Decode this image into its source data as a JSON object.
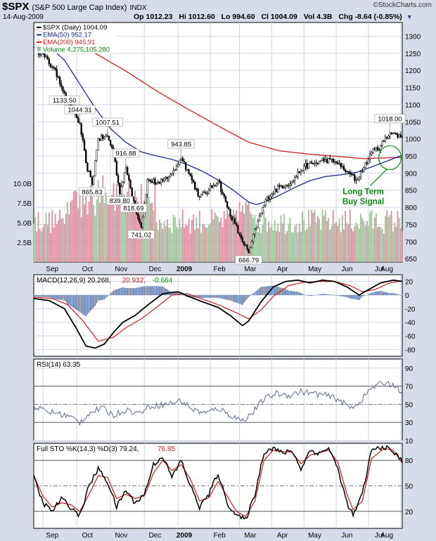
{
  "header": {
    "symbol": "$SPX",
    "name": "(S&P 500 Large Cap Index)",
    "exchange": "INDX",
    "date": "14-Aug-2009",
    "open": "Op 1012.23",
    "high": "Hi 1012.60",
    "low": "Lo 994.60",
    "close": "Cl 1004.09",
    "volume": "Vol 4.3B",
    "change": "Chg -8.64 (-0.85%)",
    "watermark": "©StockCharts.com"
  },
  "colors": {
    "background": "#d7dde8",
    "panel": "#ffffff",
    "price": "#000000",
    "ema50": "#1a2a8a",
    "ema200": "#cc1f1f",
    "volume_up": "#9cc29a",
    "volume_down": "#d98fa0",
    "annotation": "#0a8a0a",
    "rsi": "#5a6a90",
    "grid": "#cfd6e4"
  },
  "chart_data": [
    {
      "type": "line",
      "panel": "price",
      "title": "$SPX (Daily) 1004.09",
      "legend": [
        {
          "label": "$SPX (Daily) 1004.09",
          "color": "#000000"
        },
        {
          "label": "EMA(50) 952.17",
          "color": "#1a2a8a"
        },
        {
          "label": "EMA(200) 945.91",
          "color": "#cc1f1f"
        },
        {
          "label": "Volume 4,275,105,280",
          "color": "#0a8a0a"
        }
      ],
      "legend_position": "top-left",
      "ylim": [
        640,
        1340
      ],
      "yticks": [
        650,
        700,
        750,
        800,
        850,
        900,
        950,
        1000,
        1050,
        1100,
        1150,
        1200,
        1250,
        1300
      ],
      "volume_ticks": [
        "2.5B",
        "5.0B",
        "7.5B",
        "10.0B"
      ],
      "x_month_labels": [
        "Sep",
        "Oct",
        "Nov",
        "Dec",
        "2009",
        "Feb",
        "Mar",
        "Apr",
        "May",
        "Jun",
        "Jul",
        "Aug"
      ],
      "x_range": [
        0,
        240
      ],
      "close_keypoints": [
        [
          0,
          1268
        ],
        [
          5,
          1250
        ],
        [
          12,
          1210
        ],
        [
          16,
          1180
        ],
        [
          20,
          1133.5
        ],
        [
          24,
          1095
        ],
        [
          30,
          1044.31
        ],
        [
          34,
          930
        ],
        [
          38,
          865.83
        ],
        [
          42,
          1000
        ],
        [
          48,
          1007.51
        ],
        [
          52,
          960
        ],
        [
          56,
          839.8
        ],
        [
          60,
          916.88
        ],
        [
          65,
          818.69
        ],
        [
          70,
          741.02
        ],
        [
          74,
          880
        ],
        [
          82,
          870
        ],
        [
          90,
          900
        ],
        [
          96,
          943.85
        ],
        [
          100,
          910
        ],
        [
          108,
          830
        ],
        [
          114,
          850
        ],
        [
          120,
          880
        ],
        [
          126,
          800
        ],
        [
          134,
          720
        ],
        [
          140,
          666.79
        ],
        [
          146,
          760
        ],
        [
          152,
          830
        ],
        [
          160,
          860
        ],
        [
          168,
          875
        ],
        [
          176,
          920
        ],
        [
          184,
          930
        ],
        [
          190,
          940
        ],
        [
          197,
          930
        ],
        [
          204,
          905
        ],
        [
          210,
          880
        ],
        [
          214,
          905
        ],
        [
          220,
          960
        ],
        [
          226,
          980
        ],
        [
          232,
          1018
        ],
        [
          236,
          1012.6
        ],
        [
          240,
          1004.09
        ]
      ],
      "ema50_keypoints": [
        [
          0,
          1300
        ],
        [
          10,
          1270
        ],
        [
          20,
          1230
        ],
        [
          30,
          1160
        ],
        [
          40,
          1090
        ],
        [
          50,
          1030
        ],
        [
          60,
          990
        ],
        [
          70,
          962
        ],
        [
          80,
          950
        ],
        [
          90,
          940
        ],
        [
          100,
          925
        ],
        [
          110,
          905
        ],
        [
          120,
          880
        ],
        [
          130,
          850
        ],
        [
          140,
          815
        ],
        [
          145,
          808
        ],
        [
          150,
          815
        ],
        [
          160,
          835
        ],
        [
          170,
          858
        ],
        [
          180,
          878
        ],
        [
          190,
          890
        ],
        [
          200,
          895
        ],
        [
          210,
          902
        ],
        [
          220,
          918
        ],
        [
          230,
          935
        ],
        [
          240,
          952.17
        ]
      ],
      "ema200_keypoints": [
        [
          0,
          1320
        ],
        [
          20,
          1295
        ],
        [
          40,
          1250
        ],
        [
          60,
          1198
        ],
        [
          80,
          1140
        ],
        [
          100,
          1088
        ],
        [
          120,
          1038
        ],
        [
          140,
          990
        ],
        [
          160,
          965
        ],
        [
          180,
          955
        ],
        [
          200,
          948
        ],
        [
          215,
          942
        ],
        [
          225,
          944
        ],
        [
          240,
          945.91
        ]
      ],
      "price_labels": [
        {
          "x": 20,
          "value": 1133.5,
          "text": "1133.50"
        },
        {
          "x": 30,
          "value": 1044.31,
          "text": "1044.31"
        },
        {
          "x": 38,
          "value": 865.83,
          "text": "865.83"
        },
        {
          "x": 48,
          "value": 1007.51,
          "text": "1007.51"
        },
        {
          "x": 56,
          "value": 839.8,
          "text": "839.80"
        },
        {
          "x": 60,
          "value": 916.88,
          "text": "916.88"
        },
        {
          "x": 65,
          "value": 818.69,
          "text": "818.69"
        },
        {
          "x": 70,
          "value": 741.02,
          "text": "741.02"
        },
        {
          "x": 96,
          "value": 943.85,
          "text": "943.85"
        },
        {
          "x": 140,
          "value": 666.79,
          "text": "666.79"
        },
        {
          "x": 232,
          "value": 1018.0,
          "text": "1018.00"
        }
      ],
      "annotation": {
        "line1": "Long Term",
        "line2": "Buy Signal",
        "x": 232,
        "value": 945
      }
    },
    {
      "type": "line",
      "panel": "macd",
      "title": "MACD(12,26,9) 20.268, 20.932, -0.664",
      "legend": [
        {
          "label": "MACD(12,26,9) 20.268,",
          "color": "#000000"
        },
        {
          "label": "20.932,",
          "color": "#cc1f1f"
        },
        {
          "label": "-0.664",
          "color": "#0a8a0a"
        }
      ],
      "ylim": [
        -90,
        30
      ],
      "yticks": [
        -80,
        -60,
        -40,
        -20,
        0,
        20
      ],
      "macd_keypoints": [
        [
          0,
          -5
        ],
        [
          10,
          -8
        ],
        [
          20,
          -20
        ],
        [
          28,
          -50
        ],
        [
          34,
          -75
        ],
        [
          40,
          -78
        ],
        [
          46,
          -72
        ],
        [
          52,
          -55
        ],
        [
          58,
          -40
        ],
        [
          66,
          -30
        ],
        [
          74,
          -15
        ],
        [
          84,
          2
        ],
        [
          94,
          5
        ],
        [
          102,
          -3
        ],
        [
          110,
          -10
        ],
        [
          120,
          -18
        ],
        [
          128,
          -30
        ],
        [
          136,
          -45
        ],
        [
          140,
          -38
        ],
        [
          148,
          -10
        ],
        [
          156,
          12
        ],
        [
          164,
          20
        ],
        [
          172,
          22
        ],
        [
          180,
          18
        ],
        [
          188,
          22
        ],
        [
          196,
          20
        ],
        [
          204,
          12
        ],
        [
          212,
          0
        ],
        [
          218,
          8
        ],
        [
          226,
          18
        ],
        [
          234,
          22
        ],
        [
          240,
          20.268
        ]
      ],
      "signal_keypoints": [
        [
          0,
          -3
        ],
        [
          12,
          -5
        ],
        [
          22,
          -14
        ],
        [
          32,
          -38
        ],
        [
          42,
          -68
        ],
        [
          52,
          -62
        ],
        [
          60,
          -48
        ],
        [
          70,
          -35
        ],
        [
          80,
          -18
        ],
        [
          90,
          0
        ],
        [
          100,
          2
        ],
        [
          110,
          -6
        ],
        [
          120,
          -14
        ],
        [
          130,
          -24
        ],
        [
          140,
          -35
        ],
        [
          148,
          -22
        ],
        [
          156,
          -2
        ],
        [
          166,
          14
        ],
        [
          176,
          19
        ],
        [
          186,
          20
        ],
        [
          196,
          20
        ],
        [
          206,
          14
        ],
        [
          214,
          5
        ],
        [
          222,
          8
        ],
        [
          232,
          18
        ],
        [
          240,
          20.932
        ]
      ]
    },
    {
      "type": "line",
      "panel": "rsi",
      "title": "RSI(14) 63.35",
      "ylim": [
        10,
        100
      ],
      "yticks": [
        10,
        30,
        50,
        70,
        90
      ],
      "rsi_keypoints": [
        [
          0,
          48
        ],
        [
          8,
          42
        ],
        [
          16,
          40
        ],
        [
          24,
          36
        ],
        [
          30,
          30
        ],
        [
          36,
          40
        ],
        [
          44,
          46
        ],
        [
          52,
          38
        ],
        [
          60,
          44
        ],
        [
          68,
          40
        ],
        [
          76,
          48
        ],
        [
          86,
          50
        ],
        [
          96,
          54
        ],
        [
          104,
          44
        ],
        [
          112,
          40
        ],
        [
          120,
          46
        ],
        [
          128,
          38
        ],
        [
          136,
          32
        ],
        [
          142,
          40
        ],
        [
          150,
          56
        ],
        [
          158,
          62
        ],
        [
          166,
          60
        ],
        [
          174,
          64
        ],
        [
          182,
          62
        ],
        [
          190,
          60
        ],
        [
          198,
          56
        ],
        [
          206,
          46
        ],
        [
          212,
          52
        ],
        [
          220,
          68
        ],
        [
          228,
          74
        ],
        [
          234,
          72
        ],
        [
          240,
          63.35
        ]
      ]
    },
    {
      "type": "line",
      "panel": "sto",
      "title": "Full STO %K(14,3) %D(3) 79.24, 76.85",
      "legend": [
        {
          "label": "Full STO %K(14,3) %D(3) 79.24,",
          "color": "#000000"
        },
        {
          "label": "76.85",
          "color": "#cc1f1f"
        }
      ],
      "ylim": [
        0,
        100
      ],
      "yticks": [
        20,
        50,
        80
      ],
      "k_keypoints": [
        [
          0,
          60
        ],
        [
          6,
          30
        ],
        [
          12,
          20
        ],
        [
          18,
          35
        ],
        [
          24,
          25
        ],
        [
          30,
          15
        ],
        [
          36,
          50
        ],
        [
          42,
          70
        ],
        [
          48,
          55
        ],
        [
          54,
          25
        ],
        [
          60,
          45
        ],
        [
          66,
          30
        ],
        [
          72,
          40
        ],
        [
          78,
          75
        ],
        [
          84,
          85
        ],
        [
          90,
          60
        ],
        [
          96,
          80
        ],
        [
          102,
          50
        ],
        [
          108,
          25
        ],
        [
          114,
          40
        ],
        [
          120,
          65
        ],
        [
          126,
          30
        ],
        [
          132,
          15
        ],
        [
          138,
          10
        ],
        [
          144,
          40
        ],
        [
          150,
          90
        ],
        [
          156,
          95
        ],
        [
          162,
          88
        ],
        [
          168,
          92
        ],
        [
          174,
          70
        ],
        [
          180,
          92
        ],
        [
          186,
          88
        ],
        [
          192,
          95
        ],
        [
          198,
          70
        ],
        [
          204,
          30
        ],
        [
          208,
          15
        ],
        [
          214,
          40
        ],
        [
          220,
          92
        ],
        [
          228,
          96
        ],
        [
          234,
          90
        ],
        [
          240,
          79.24
        ]
      ],
      "d_keypoints": [
        [
          0,
          62
        ],
        [
          6,
          38
        ],
        [
          12,
          25
        ],
        [
          18,
          30
        ],
        [
          24,
          28
        ],
        [
          30,
          20
        ],
        [
          36,
          40
        ],
        [
          42,
          62
        ],
        [
          48,
          60
        ],
        [
          54,
          35
        ],
        [
          60,
          40
        ],
        [
          66,
          35
        ],
        [
          72,
          38
        ],
        [
          78,
          65
        ],
        [
          84,
          80
        ],
        [
          90,
          68
        ],
        [
          96,
          75
        ],
        [
          102,
          58
        ],
        [
          108,
          32
        ],
        [
          114,
          36
        ],
        [
          120,
          55
        ],
        [
          126,
          38
        ],
        [
          132,
          20
        ],
        [
          138,
          14
        ],
        [
          144,
          32
        ],
        [
          150,
          80
        ],
        [
          156,
          92
        ],
        [
          162,
          90
        ],
        [
          168,
          90
        ],
        [
          174,
          76
        ],
        [
          180,
          86
        ],
        [
          186,
          89
        ],
        [
          192,
          92
        ],
        [
          198,
          78
        ],
        [
          204,
          40
        ],
        [
          208,
          22
        ],
        [
          214,
          32
        ],
        [
          220,
          82
        ],
        [
          228,
          94
        ],
        [
          234,
          92
        ],
        [
          240,
          76.85
        ]
      ]
    }
  ]
}
